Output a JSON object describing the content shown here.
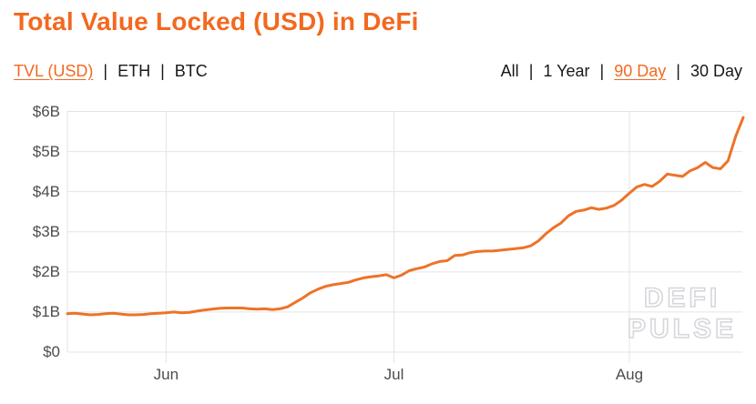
{
  "header": {
    "title": "Total Value Locked (USD) in DeFi"
  },
  "series_nav": {
    "separator": "|",
    "items": [
      {
        "label": "TVL (USD)",
        "active": true
      },
      {
        "label": "ETH",
        "active": false
      },
      {
        "label": "BTC",
        "active": false
      }
    ]
  },
  "range_nav": {
    "separator": "|",
    "items": [
      {
        "label": "All",
        "active": false
      },
      {
        "label": "1 Year",
        "active": false
      },
      {
        "label": "90 Day",
        "active": true
      },
      {
        "label": "30 Day",
        "active": false
      }
    ]
  },
  "watermark": {
    "line1": "DEFI",
    "line2": "PULSE"
  },
  "colors": {
    "accent": "#f2691f",
    "line": "#ed7327",
    "nav_text": "#17181a",
    "axis_text": "#4c4d51",
    "gridline": "#e3e4e7",
    "watermark": "#d6d7db"
  },
  "chart_data": {
    "type": "line",
    "title": "Total Value Locked (USD) in DeFi",
    "unit": "USD billions",
    "series_name": "TVL (USD)",
    "range": "90 Day",
    "ylim": [
      0,
      6
    ],
    "y_ticks": [
      "$6B",
      "$5B",
      "$4B",
      "$3B",
      "$2B",
      "$1B",
      "$0"
    ],
    "x_ticks": [
      {
        "label": "Jun",
        "day": 13
      },
      {
        "label": "Jul",
        "day": 43
      },
      {
        "label": "Aug",
        "day": 74
      }
    ],
    "range_days": 90,
    "grid": true,
    "values": [
      0.96,
      0.97,
      0.95,
      0.93,
      0.94,
      0.96,
      0.97,
      0.95,
      0.93,
      0.93,
      0.94,
      0.96,
      0.97,
      0.98,
      1.0,
      0.98,
      0.99,
      1.02,
      1.05,
      1.07,
      1.09,
      1.1,
      1.1,
      1.1,
      1.08,
      1.07,
      1.08,
      1.06,
      1.08,
      1.13,
      1.24,
      1.35,
      1.48,
      1.57,
      1.64,
      1.68,
      1.71,
      1.74,
      1.8,
      1.85,
      1.88,
      1.9,
      1.93,
      1.85,
      1.92,
      2.03,
      2.08,
      2.12,
      2.2,
      2.26,
      2.28,
      2.41,
      2.42,
      2.48,
      2.51,
      2.52,
      2.52,
      2.54,
      2.56,
      2.58,
      2.6,
      2.65,
      2.77,
      2.95,
      3.1,
      3.22,
      3.4,
      3.51,
      3.54,
      3.6,
      3.56,
      3.59,
      3.66,
      3.79,
      3.96,
      4.12,
      4.18,
      4.13,
      4.26,
      4.44,
      4.41,
      4.38,
      4.52,
      4.6,
      4.73,
      4.6,
      4.57,
      4.77,
      5.38,
      5.85
    ]
  }
}
